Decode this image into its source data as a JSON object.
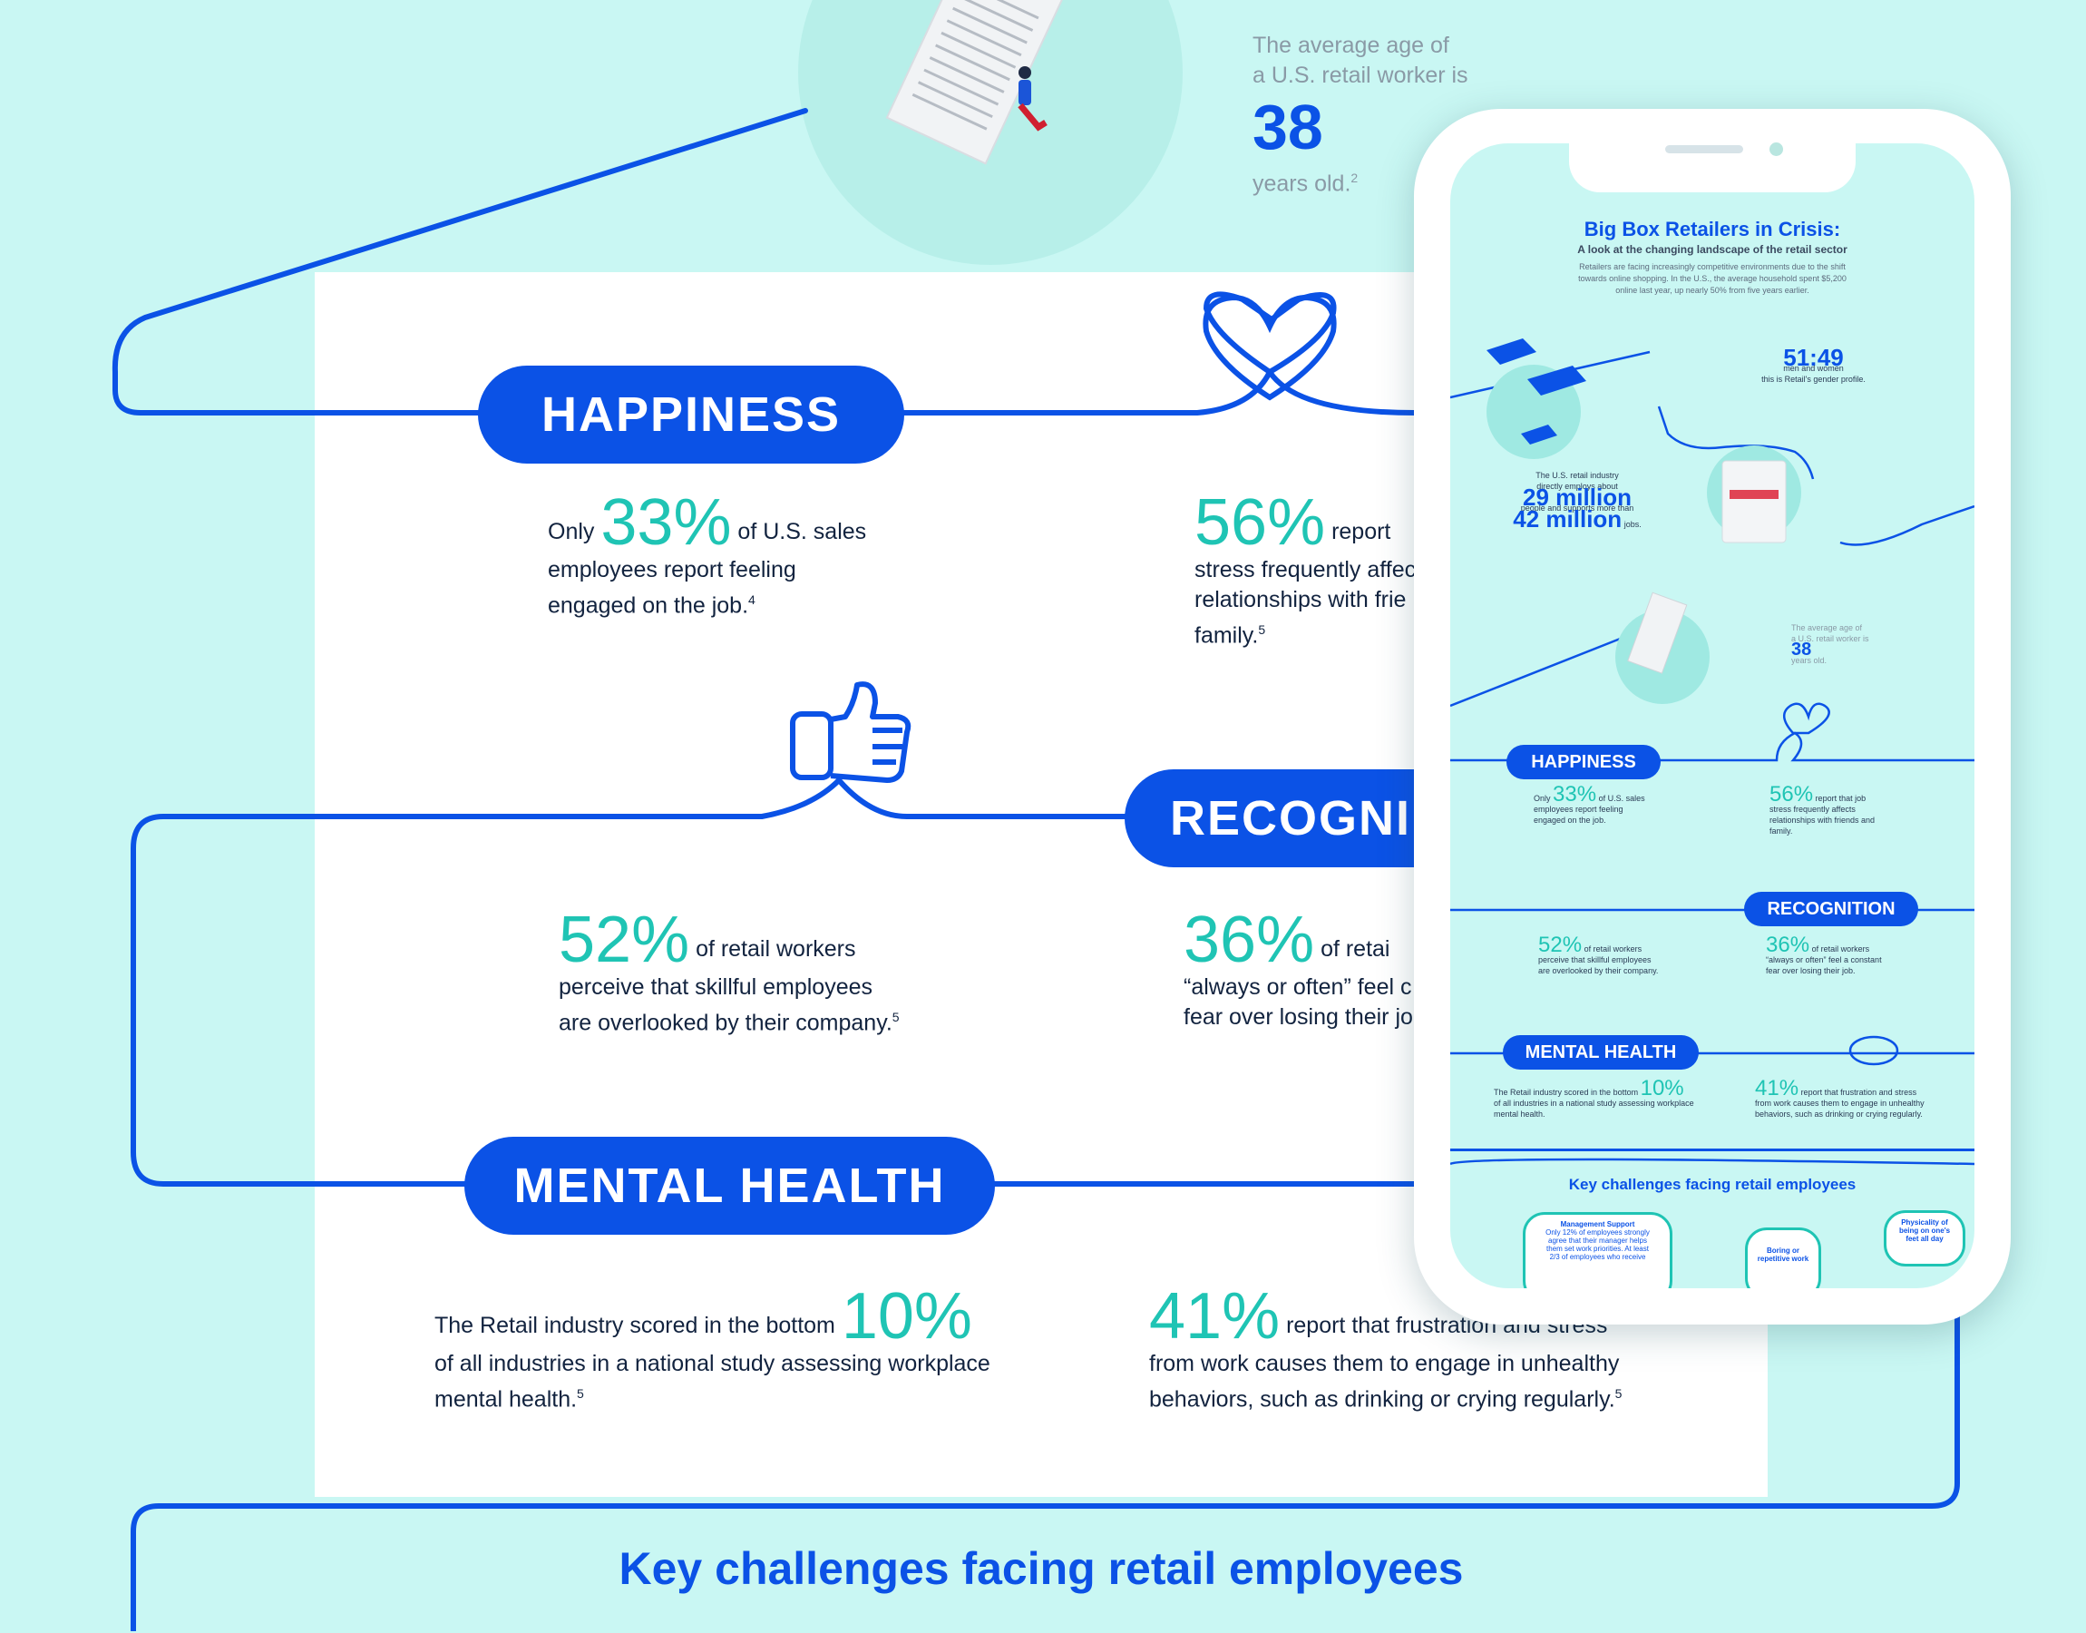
{
  "colors": {
    "accent": "#0b52e6",
    "teal": "#1fc4b4",
    "background": "#c9f7f3",
    "text": "#12233f"
  },
  "top": {
    "age_line1": "The average age of",
    "age_line2": "a U.S. retail worker is",
    "age_value": "38",
    "age_suffix": "years old.",
    "age_sup": "2"
  },
  "happiness": {
    "label": "HAPPINESS",
    "stat1": {
      "pre": "Only",
      "value": "33%",
      "line1": "of U.S. sales",
      "line2": "employees report feeling",
      "line3": "engaged on the job.",
      "sup": "4"
    },
    "stat2": {
      "value": "56%",
      "line1": "report",
      "line2": "stress frequently affec",
      "line3": "relationships with frie",
      "line4": "family.",
      "sup": "5"
    }
  },
  "recognition": {
    "label": "RECOGNI",
    "stat1": {
      "value": "52%",
      "line1": "of retail workers",
      "line2": "perceive that skillful employees",
      "line3": "are overlooked by their company.",
      "sup": "5"
    },
    "stat2": {
      "value": "36%",
      "line1": "of retai",
      "line2": "“always or often” feel c",
      "line3": "fear over losing their jo"
    }
  },
  "mental_health": {
    "label": "MENTAL HEALTH",
    "stat1": {
      "line1": "The Retail industry scored in the bottom",
      "value": "10%",
      "line2": "of all industries in a national study assessing workplace",
      "line3": "mental health.",
      "sup": "5"
    },
    "stat2": {
      "value": "41%",
      "line1": "report that frustration and stress",
      "line2": "from work causes them to engage in unhealthy",
      "line3": "behaviors, such as drinking or crying regularly.",
      "sup": "5"
    }
  },
  "key_challenges_title": "Key challenges facing retail employees",
  "phone": {
    "title": "Big Box Retailers in Crisis:",
    "subtitle": "A look at the changing landscape of the retail sector",
    "intro_l1": "Retailers are facing increasingly competitive environments due to the shift",
    "intro_l2": "towards online shopping. In the U.S., the average household spent $5,200",
    "intro_l3": "online last year, up nearly 50% from five years earlier.",
    "ratio_value": "51:49",
    "ratio_l1": "men and women",
    "ratio_l2": "this is Retail's gender profile.",
    "employs_l1": "The U.S. retail industry",
    "employs_l2": "directly employs about",
    "employs_value": "29 million",
    "supports_l1": "people and supports more than",
    "supports_value": "42 million",
    "supports_suffix": "jobs.",
    "age_l1": "The average age of",
    "age_l2": "a U.S. retail worker is",
    "age_value": "38",
    "age_suffix": "years old.",
    "happiness_label": "HAPPINESS",
    "h1_pre": "Only",
    "h1_value": "33%",
    "h1_l1": "of U.S. sales",
    "h1_l2": "employees report feeling",
    "h1_l3": "engaged on the job.",
    "h2_value": "56%",
    "h2_l1": "report that job",
    "h2_l2": "stress frequently affects",
    "h2_l3": "relationships with friends and",
    "h2_l4": "family.",
    "recognition_label": "RECOGNITION",
    "r1_value": "52%",
    "r1_l1": "of retail workers",
    "r1_l2": "perceive that skillful employees",
    "r1_l3": "are overlooked by their company.",
    "r2_value": "36%",
    "r2_l1": "of retail workers",
    "r2_l2": "“always or often” feel a constant",
    "r2_l3": "fear over losing their job.",
    "mental_label": "MENTAL HEALTH",
    "m1_l1": "The Retail industry scored in the bottom",
    "m1_value": "10%",
    "m1_l2": "of all industries in a national study assessing workplace",
    "m1_l3": "mental health.",
    "m2_value": "41%",
    "m2_l1": "report that frustration and stress",
    "m2_l2": "from work causes them to engage in unhealthy",
    "m2_l3": "behaviors, such as drinking or crying regularly.",
    "key_title": "Key challenges facing retail employees",
    "card1_title": "Management Support",
    "card1_l1": "Only 12% of employees strongly",
    "card1_l2": "agree that their manager helps",
    "card1_l3": "them set work priorities. At least",
    "card1_l4": "2/3 of employees who receive",
    "card2": "Boring or repetitive work",
    "card3": "Physicality of being on one's feet all day"
  }
}
